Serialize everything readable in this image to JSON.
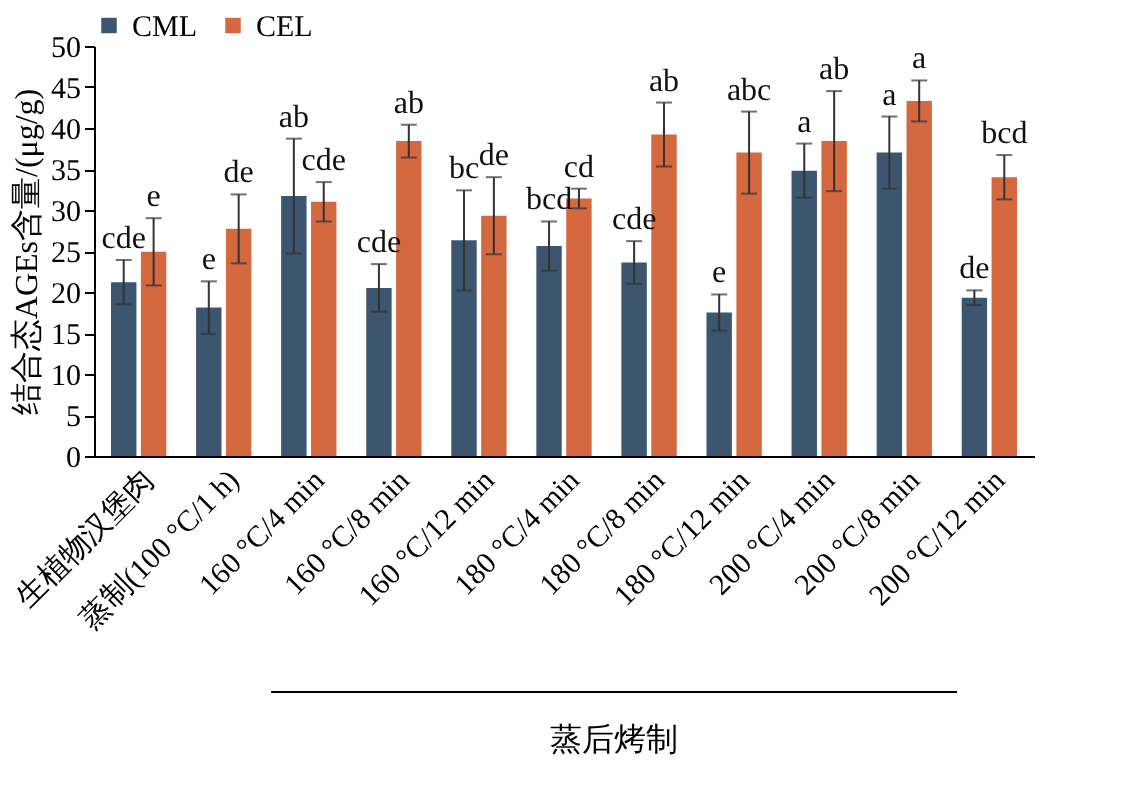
{
  "chart_data": {
    "type": "bar",
    "ylabel": "结合态AGEs含量/(μg/g)",
    "categories": [
      "生植物汉堡肉",
      "蒸制(100 °C/1 h)",
      "160 °C/4 min",
      "160 °C/8 min",
      "160 °C/12 min",
      "180 °C/4 min",
      "180 °C/8 min",
      "180 °C/12 min",
      "200 °C/4 min",
      "200 °C/8 min",
      "200 °C/12 min"
    ],
    "series": [
      {
        "name": "CML",
        "color": "#3d5670",
        "values": [
          21.2,
          18.1,
          31.7,
          20.5,
          26.3,
          25.6,
          23.6,
          17.5,
          34.8,
          37.0,
          19.3
        ],
        "errors": [
          2.7,
          3.2,
          7.0,
          2.9,
          6.1,
          3.0,
          2.6,
          2.2,
          3.3,
          4.4,
          0.9
        ],
        "value_labels": [
          "cde",
          "e",
          "ab",
          "cde",
          "bc",
          "bcd",
          "cde",
          "e",
          "a",
          "a",
          "de"
        ]
      },
      {
        "name": "CEL",
        "color": "#d4693f",
        "values": [
          24.9,
          27.7,
          31.0,
          38.4,
          29.3,
          31.4,
          39.2,
          37.0,
          38.4,
          43.3,
          34.0
        ],
        "errors": [
          4.1,
          4.2,
          2.4,
          2.0,
          4.7,
          1.2,
          3.9,
          5.0,
          6.1,
          2.5,
          2.7
        ],
        "value_labels": [
          "e",
          "de",
          "cde",
          "ab",
          "de",
          "cd",
          "ab",
          "abc",
          "ab",
          "a",
          "bcd"
        ]
      }
    ],
    "ylim": [
      0,
      50
    ],
    "yticks": [
      0,
      5,
      10,
      15,
      20,
      25,
      30,
      35,
      40,
      45,
      50
    ],
    "grid": false,
    "legend": "top",
    "annotations": [
      "蒸后烤制"
    ]
  }
}
